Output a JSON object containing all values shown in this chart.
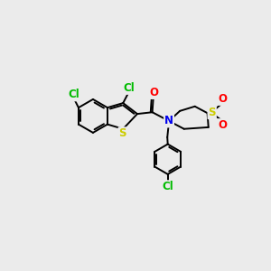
{
  "bg_color": "#ebebeb",
  "bond_color": "#000000",
  "bond_width": 1.4,
  "atom_colors": {
    "Cl": "#00bb00",
    "S": "#cccc00",
    "N": "#0000ee",
    "O": "#ff0000"
  },
  "font_size": 8.5
}
